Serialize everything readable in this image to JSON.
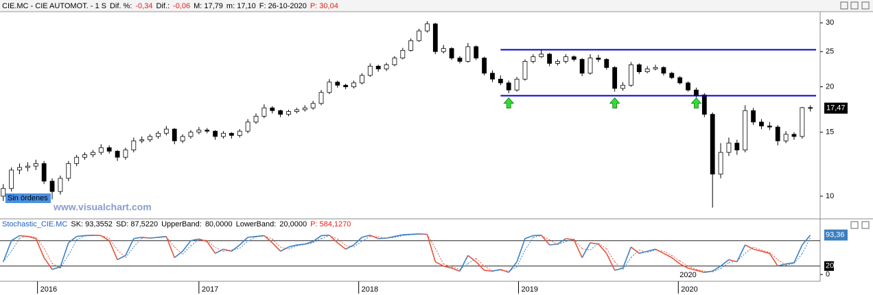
{
  "header": {
    "items": [
      {
        "text": "CIE.MC - CIE AUTOMOT. - 1 S",
        "color": "#000000"
      },
      {
        "text": "Dif. %:",
        "color": "#000000"
      },
      {
        "text": "-0,34",
        "color": "#e02020"
      },
      {
        "text": "Dif.:",
        "color": "#000000"
      },
      {
        "text": "-0,06",
        "color": "#e02020"
      },
      {
        "text": "M: 17,79",
        "color": "#000000"
      },
      {
        "text": "m: 17,10",
        "color": "#000000"
      },
      {
        "text": "F: 26-10-2020",
        "color": "#000000"
      },
      {
        "text": "P: 30,04",
        "color": "#e02020"
      }
    ]
  },
  "chart_data": [
    {
      "type": "candlestick",
      "log_scale": true,
      "xlim": [
        -0.4,
        100.2
      ],
      "ylim": [
        8.7,
        32.2
      ],
      "yticks": [
        10,
        15,
        20,
        25,
        30
      ],
      "xticks": [
        {
          "value": 4.2,
          "label": "2016"
        },
        {
          "value": 24,
          "label": "2017"
        },
        {
          "value": 43.6,
          "label": "2018"
        },
        {
          "value": 63.2,
          "label": "2019"
        },
        {
          "value": 82.8,
          "label": "2020"
        }
      ],
      "up_color": "#ffffff",
      "down_color": "#000000",
      "candles": [
        [
          10.0,
          10.8,
          9.7,
          10.5
        ],
        [
          10.5,
          12.0,
          10.3,
          11.8
        ],
        [
          11.8,
          12.3,
          11.5,
          12.0
        ],
        [
          12.0,
          12.4,
          11.7,
          12.1
        ],
        [
          12.1,
          12.6,
          11.8,
          12.3
        ],
        [
          12.3,
          12.5,
          10.8,
          11.0
        ],
        [
          11.0,
          11.2,
          9.8,
          10.3
        ],
        [
          10.3,
          11.4,
          10.1,
          11.2
        ],
        [
          11.2,
          12.5,
          11.0,
          12.3
        ],
        [
          12.3,
          13.0,
          12.1,
          12.8
        ],
        [
          12.8,
          13.2,
          12.6,
          13.0
        ],
        [
          13.0,
          13.4,
          12.8,
          13.2
        ],
        [
          13.2,
          13.9,
          13.0,
          13.6
        ],
        [
          13.6,
          13.8,
          13.1,
          13.3
        ],
        [
          13.3,
          13.4,
          12.5,
          12.8
        ],
        [
          12.8,
          13.6,
          12.6,
          13.4
        ],
        [
          13.4,
          14.5,
          13.2,
          14.2
        ],
        [
          14.2,
          14.6,
          14.0,
          14.3
        ],
        [
          14.3,
          14.8,
          14.1,
          14.6
        ],
        [
          14.6,
          15.1,
          14.4,
          14.9
        ],
        [
          14.9,
          15.6,
          14.7,
          15.3
        ],
        [
          15.3,
          15.4,
          13.9,
          14.2
        ],
        [
          14.2,
          14.8,
          14.0,
          14.6
        ],
        [
          14.6,
          15.2,
          14.4,
          15.0
        ],
        [
          15.0,
          15.5,
          14.8,
          15.2
        ],
        [
          15.2,
          15.4,
          14.9,
          15.1
        ],
        [
          15.1,
          15.2,
          14.3,
          14.6
        ],
        [
          14.6,
          15.1,
          14.4,
          14.9
        ],
        [
          14.9,
          15.0,
          14.4,
          14.7
        ],
        [
          14.7,
          15.3,
          14.5,
          15.1
        ],
        [
          15.1,
          16.3,
          14.9,
          16.0
        ],
        [
          16.0,
          16.9,
          15.8,
          16.6
        ],
        [
          16.6,
          17.9,
          16.4,
          17.5
        ],
        [
          17.5,
          17.7,
          16.9,
          17.2
        ],
        [
          17.2,
          17.3,
          16.5,
          16.8
        ],
        [
          16.8,
          17.3,
          16.6,
          17.1
        ],
        [
          17.1,
          17.5,
          16.9,
          17.3
        ],
        [
          17.3,
          17.8,
          17.1,
          17.5
        ],
        [
          17.5,
          18.3,
          17.3,
          18.0
        ],
        [
          18.0,
          19.6,
          17.8,
          19.3
        ],
        [
          19.3,
          21.0,
          19.1,
          20.6
        ],
        [
          20.6,
          20.8,
          19.9,
          20.2
        ],
        [
          20.2,
          20.4,
          19.7,
          20.0
        ],
        [
          20.0,
          20.8,
          19.8,
          20.5
        ],
        [
          20.5,
          21.8,
          20.3,
          21.5
        ],
        [
          21.5,
          23.2,
          21.3,
          22.8
        ],
        [
          22.8,
          23.0,
          22.0,
          22.4
        ],
        [
          22.4,
          23.3,
          22.1,
          23.0
        ],
        [
          23.0,
          24.3,
          22.8,
          24.0
        ],
        [
          24.0,
          25.6,
          23.8,
          25.2
        ],
        [
          25.2,
          27.2,
          25.0,
          26.8
        ],
        [
          26.8,
          28.9,
          26.6,
          28.5
        ],
        [
          28.5,
          30.3,
          28.2,
          29.8
        ],
        [
          29.8,
          30.0,
          24.6,
          25.0
        ],
        [
          25.0,
          26.1,
          24.7,
          25.5
        ],
        [
          25.5,
          25.7,
          23.7,
          24.0
        ],
        [
          24.0,
          24.3,
          23.2,
          23.5
        ],
        [
          23.5,
          26.4,
          23.3,
          25.8
        ],
        [
          25.8,
          26.0,
          23.7,
          24.0
        ],
        [
          24.0,
          24.2,
          21.5,
          21.8
        ],
        [
          21.8,
          22.2,
          20.6,
          21.0
        ],
        [
          21.0,
          21.5,
          20.2,
          20.5
        ],
        [
          20.5,
          20.8,
          19.2,
          19.6
        ],
        [
          19.6,
          21.3,
          19.4,
          21.0
        ],
        [
          21.0,
          23.8,
          20.8,
          23.5
        ],
        [
          23.5,
          24.6,
          23.2,
          24.2
        ],
        [
          24.2,
          25.2,
          24.0,
          24.6
        ],
        [
          24.6,
          24.8,
          22.8,
          23.2
        ],
        [
          23.2,
          23.8,
          22.9,
          23.5
        ],
        [
          23.5,
          24.6,
          23.2,
          24.2
        ],
        [
          24.2,
          24.4,
          23.5,
          23.8
        ],
        [
          23.8,
          24.0,
          21.4,
          21.8
        ],
        [
          21.8,
          24.6,
          21.6,
          24.0
        ],
        [
          24.0,
          24.5,
          23.4,
          23.8
        ],
        [
          23.8,
          24.0,
          22.3,
          22.6
        ],
        [
          22.6,
          22.8,
          19.4,
          19.8
        ],
        [
          19.8,
          20.6,
          19.5,
          20.2
        ],
        [
          20.2,
          23.4,
          20.0,
          23.0
        ],
        [
          23.0,
          23.2,
          21.7,
          22.0
        ],
        [
          22.0,
          22.8,
          21.8,
          22.4
        ],
        [
          22.4,
          23.0,
          22.2,
          22.6
        ],
        [
          22.6,
          22.8,
          21.5,
          21.8
        ],
        [
          21.8,
          22.0,
          21.0,
          21.2
        ],
        [
          21.2,
          21.4,
          20.3,
          20.5
        ],
        [
          20.5,
          20.7,
          19.4,
          19.6
        ],
        [
          19.6,
          19.9,
          18.7,
          19.0
        ],
        [
          19.0,
          19.2,
          16.5,
          16.8
        ],
        [
          16.8,
          17.0,
          9.3,
          11.5
        ],
        [
          11.5,
          14.0,
          11.2,
          13.2
        ],
        [
          13.2,
          14.5,
          12.9,
          14.0
        ],
        [
          14.0,
          14.3,
          13.0,
          13.4
        ],
        [
          13.4,
          17.8,
          13.2,
          17.2
        ],
        [
          17.2,
          17.5,
          15.7,
          16.0
        ],
        [
          16.0,
          16.3,
          15.3,
          15.6
        ],
        [
          15.6,
          16.0,
          15.2,
          15.5
        ],
        [
          15.5,
          15.7,
          13.8,
          14.2
        ],
        [
          14.2,
          15.1,
          14.0,
          14.8
        ],
        [
          14.8,
          15.0,
          14.3,
          14.6
        ],
        [
          14.6,
          17.6,
          14.4,
          17.53
        ],
        [
          17.53,
          17.79,
          17.1,
          17.47
        ]
      ],
      "levels": [
        {
          "value": 25.3,
          "from": 61,
          "to": 99.7,
          "color": "#0000cc"
        },
        {
          "value": 18.9,
          "from": 61,
          "to": 99.7,
          "color": "#0000cc"
        }
      ],
      "signals": {
        "indices": [
          62,
          75,
          85
        ],
        "color": "#33dd33"
      },
      "last_price": {
        "value": 17.47,
        "label": "17,47"
      },
      "orders_label": "Sin órdenes",
      "watermark": "www.visualchart.com"
    },
    {
      "type": "line",
      "title_items": [
        {
          "text": "Stochastic_CIE.MC",
          "color": "#2060c0"
        },
        {
          "text": "SK: 93,3552",
          "color": "#000000"
        },
        {
          "text": "SD: 87,5220",
          "color": "#000000"
        },
        {
          "text": "UpperBand:",
          "color": "#000000"
        },
        {
          "text": "LowerBand:",
          "color": "#000000"
        },
        {
          "text": "P: 584,1270",
          "color": "#e02020"
        }
      ],
      "xlim": [
        -0.4,
        100.2
      ],
      "ylim": [
        -16,
        130
      ],
      "yticks": [
        0
      ],
      "up_color": "#3a7fc0",
      "down_color": "#e8513a",
      "series": [
        {
          "values": [
            30,
            80,
            92,
            90,
            85,
            40,
            12,
            18,
            75,
            90,
            92,
            93,
            92,
            80,
            35,
            45,
            85,
            88,
            86,
            88,
            90,
            40,
            55,
            80,
            84,
            78,
            50,
            60,
            55,
            70,
            88,
            90,
            92,
            75,
            55,
            65,
            70,
            72,
            78,
            92,
            93,
            75,
            60,
            70,
            88,
            93,
            85,
            86,
            90,
            94,
            95,
            96,
            95,
            30,
            20,
            15,
            8,
            45,
            30,
            10,
            8,
            12,
            5,
            30,
            85,
            92,
            93,
            70,
            72,
            85,
            82,
            40,
            75,
            72,
            50,
            10,
            15,
            65,
            50,
            55,
            60,
            50,
            40,
            25,
            15,
            10,
            5,
            8,
            20,
            35,
            30,
            70,
            60,
            55,
            50,
            20,
            25,
            28,
            70,
            93.3552
          ],
          "dash": false
        },
        {
          "values": [
            30,
            55,
            86,
            91,
            88,
            62,
            26,
            15,
            46,
            82,
            91,
            92,
            92,
            86,
            58,
            40,
            65,
            86,
            87,
            87,
            89,
            65,
            48,
            68,
            82,
            81,
            64,
            55,
            58,
            62,
            79,
            89,
            91,
            84,
            65,
            60,
            68,
            71,
            75,
            85,
            92,
            84,
            68,
            65,
            79,
            90,
            89,
            86,
            88,
            92,
            94,
            95,
            95,
            62,
            25,
            18,
            12,
            26,
            38,
            20,
            9,
            10,
            8,
            18,
            58,
            88,
            92,
            82,
            71,
            78,
            84,
            61,
            58,
            74,
            61,
            30,
            12,
            40,
            58,
            52,
            58,
            55,
            45,
            32,
            20,
            12,
            8,
            6,
            14,
            28,
            32,
            50,
            65,
            58,
            52,
            35,
            22,
            26,
            49,
            87.522
          ],
          "dash": true
        }
      ],
      "bands": [
        {
          "value": 80,
          "label": "80,0000"
        },
        {
          "value": 20,
          "label": "20,0000"
        }
      ],
      "band_badge": 20,
      "last_value": {
        "value": 93.36,
        "label": "93,36"
      }
    }
  ]
}
